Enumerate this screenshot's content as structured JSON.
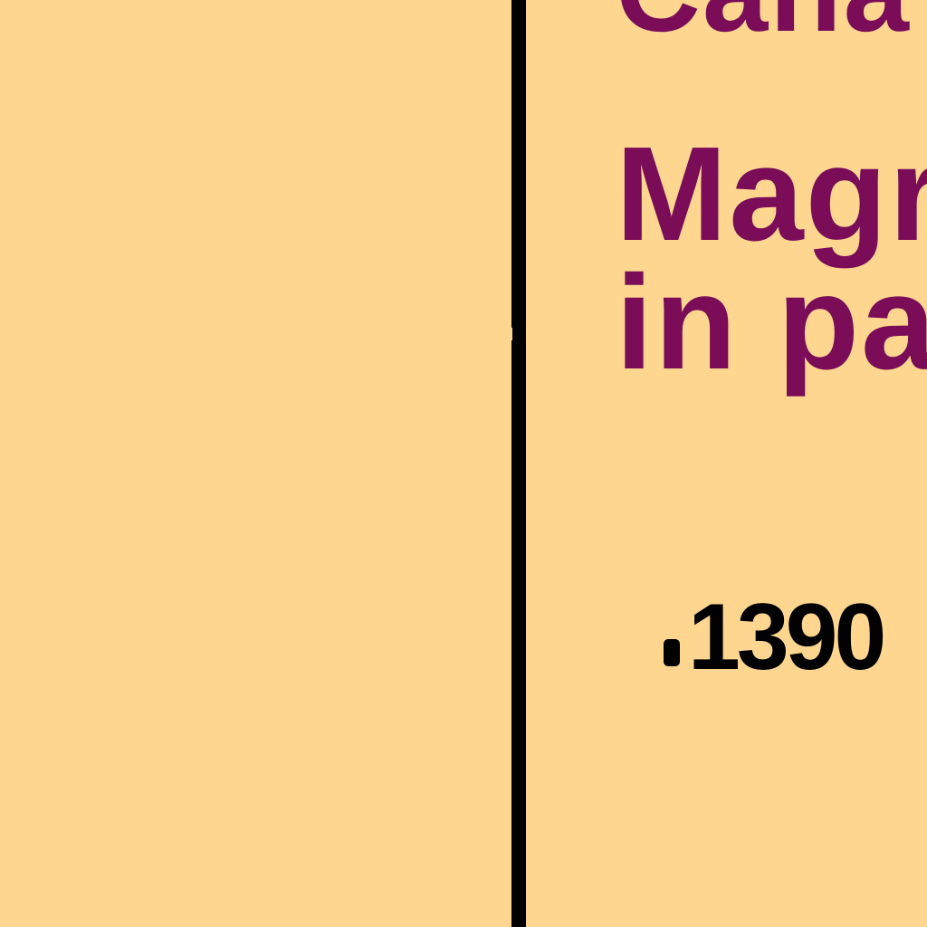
{
  "map": {
    "labels": {
      "top": "Cana",
      "second": "Magr",
      "third": "in pa"
    },
    "elevation": "1390"
  },
  "colors": {
    "land": "#fed690",
    "label_text": "#7a0c58",
    "boundary": "#000000"
  }
}
